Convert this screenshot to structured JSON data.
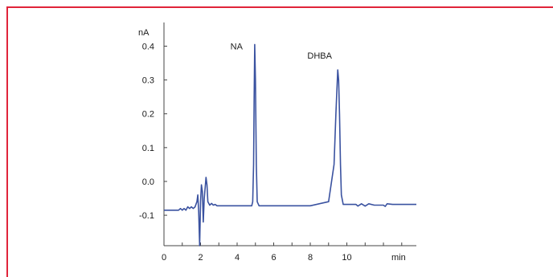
{
  "colors": {
    "frame": "#e0243a",
    "axis": "#444444",
    "trace": "#3a52a0"
  },
  "chart_data": {
    "type": "line",
    "title": "",
    "xlabel": "min",
    "ylabel": "nA",
    "xlim": [
      0,
      13.8
    ],
    "ylim": [
      -0.19,
      0.47
    ],
    "x_ticks": [
      0,
      2,
      4,
      6,
      8,
      10
    ],
    "x_tick_labels": [
      "0",
      "2",
      "4",
      "6",
      "8",
      "10"
    ],
    "y_ticks": [
      0.4,
      0.3,
      0.2,
      0.1,
      0.0,
      -0.1
    ],
    "y_tick_labels": [
      "0.4",
      "0.3",
      "0.2",
      "0.1",
      "0.0",
      "-0.1"
    ],
    "grid": false,
    "annotations": [
      {
        "text": "NA",
        "x": 4.95,
        "y": 0.4
      },
      {
        "text": "DHBA",
        "x": 9.6,
        "y": 0.33
      }
    ],
    "series": [
      {
        "x": [
          0.0,
          0.8,
          0.9,
          1.0,
          1.1,
          1.2,
          1.3,
          1.4,
          1.5,
          1.6,
          1.7,
          1.8,
          1.85,
          1.9,
          1.95,
          2.0,
          2.05,
          2.1,
          2.15,
          2.2,
          2.25,
          2.3,
          2.35,
          2.4,
          2.5,
          2.6,
          2.7,
          2.8,
          2.9,
          3.0,
          3.5,
          4.0,
          4.5,
          4.8,
          4.85,
          4.9,
          4.93,
          4.96,
          5.0,
          5.05,
          5.1,
          5.2,
          5.5,
          6.0,
          7.0,
          8.0,
          9.0,
          9.3,
          9.4,
          9.5,
          9.55,
          9.6,
          9.65,
          9.7,
          9.8,
          9.9,
          10.0,
          10.5,
          10.6,
          10.8,
          11.0,
          11.2,
          11.5,
          12.0,
          12.1,
          12.2,
          12.5,
          13.0,
          13.8
        ],
        "y": [
          -0.085,
          -0.085,
          -0.08,
          -0.085,
          -0.08,
          -0.085,
          -0.075,
          -0.08,
          -0.075,
          -0.08,
          -0.075,
          -0.06,
          -0.04,
          -0.09,
          -0.19,
          -0.06,
          -0.01,
          -0.03,
          -0.12,
          -0.05,
          -0.02,
          0.012,
          -0.01,
          -0.06,
          -0.07,
          -0.065,
          -0.07,
          -0.068,
          -0.072,
          -0.072,
          -0.072,
          -0.072,
          -0.072,
          -0.072,
          -0.06,
          0.05,
          0.25,
          0.405,
          0.3,
          0.05,
          -0.06,
          -0.072,
          -0.072,
          -0.072,
          -0.072,
          -0.072,
          -0.06,
          0.05,
          0.2,
          0.33,
          0.3,
          0.2,
          0.05,
          -0.04,
          -0.068,
          -0.068,
          -0.068,
          -0.068,
          -0.073,
          -0.066,
          -0.073,
          -0.066,
          -0.07,
          -0.07,
          -0.074,
          -0.066,
          -0.068,
          -0.068,
          -0.068
        ]
      }
    ]
  }
}
